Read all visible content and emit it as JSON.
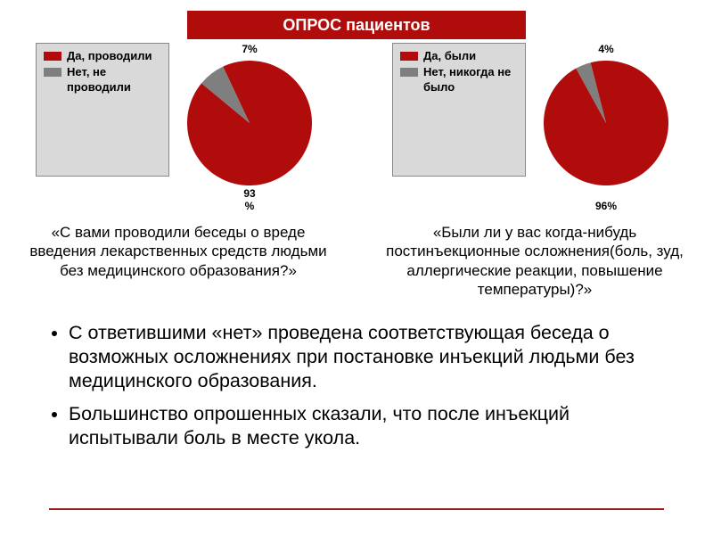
{
  "header": {
    "title": "ОПРОС пациентов",
    "bg_color": "#b10c0c",
    "text_color": "#ffffff",
    "fontsize": 18
  },
  "charts": {
    "left": {
      "type": "pie",
      "legend_bg": "#d9d9d9",
      "兼": "ignore",
      "legend_border": "#888888",
      "series": [
        {
          "label": "Да, проводили",
          "value": 93,
          "color": "#b10c0c",
          "display": "93\n%"
        },
        {
          "label": "Нет, не проводили",
          "value": 7,
          "color": "#7f7f7f",
          "display": "7%"
        }
      ],
      "question": "«С вами проводили беседы о вреде введения лекарственных средств людьми без медицинского образования?»"
    },
    "right": {
      "type": "pie",
      "legend_bg": "#d9d9d9",
      "legend_border": "#888888",
      "series": [
        {
          "label": "Да, были",
          "value": 96,
          "color": "#b10c0c",
          "display": "96%"
        },
        {
          "label": "Нет, никогда не было",
          "value": 4,
          "color": "#7f7f7f",
          "display": "4%"
        }
      ],
      "question": "«Были ли у вас когда-нибудь постинъекционные осложнения(боль, зуд, аллергические реакции, повышение температуры)?»"
    },
    "pie_radius": 70,
    "label_fontsize": 12
  },
  "bullets": [
    "С ответившими «нет» проведена соответствующая беседа о возможных осложнениях при постановке инъекций людьми без медицинского образования.",
    "Большинство опрошенных сказали, что после инъекций испытывали боль в месте укола."
  ],
  "question_fontsize": 17,
  "bullet_fontsize": 21.5,
  "rule_color": "#9a1d1d",
  "background_color": "#ffffff"
}
